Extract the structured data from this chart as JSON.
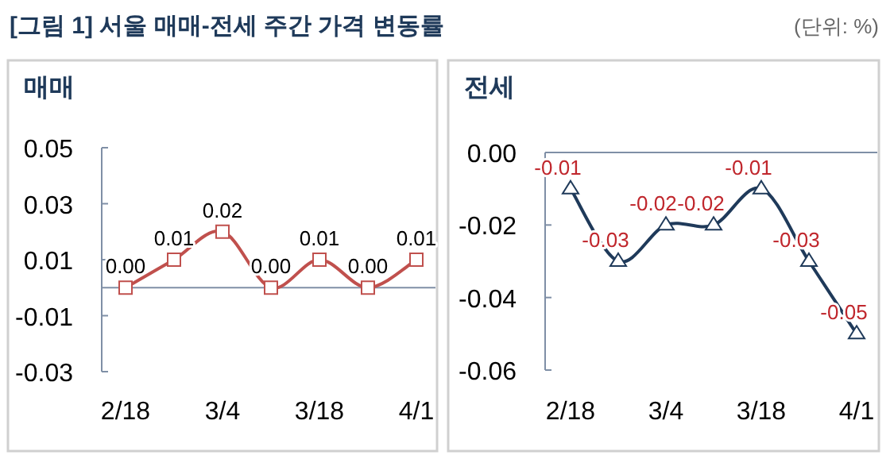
{
  "chart_data": [
    {
      "type": "line",
      "title": "매매",
      "annotations": [
        "[그림 1] 서울 매매-전세 주간 가격 변동률",
        "(단위: %)"
      ],
      "categories": [
        "2/18",
        null,
        "3/4",
        null,
        "3/18",
        null,
        "4/1"
      ],
      "series": [
        {
          "color": "#c0504d",
          "values": [
            0.0,
            0.01,
            0.02,
            0.0,
            0.01,
            0.0,
            0.01
          ],
          "value_labels": [
            "0.00",
            "0.01",
            "0.02",
            "0.00",
            "0.01",
            "0.00",
            "0.01"
          ]
        }
      ],
      "marker": "square",
      "ylim": [
        -0.03,
        0.05
      ],
      "yticks": [
        {
          "value": -0.03,
          "label": "-0.03"
        },
        {
          "value": -0.01,
          "label": "-0.01"
        },
        {
          "value": 0.01,
          "label": "0.01"
        },
        {
          "value": 0.03,
          "label": "0.03"
        },
        {
          "value": 0.05,
          "label": "0.05"
        }
      ],
      "grid": false
    },
    {
      "type": "line",
      "title": "전세",
      "categories": [
        "2/18",
        null,
        "3/4",
        null,
        "3/18",
        null,
        "4/1"
      ],
      "series": [
        {
          "color": "#1f3a5a",
          "values": [
            -0.01,
            -0.03,
            -0.02,
            -0.02,
            -0.01,
            -0.03,
            -0.05
          ]
        }
      ],
      "marker": "triangle",
      "ylim": [
        -0.06,
        0
      ],
      "yticks": [
        {
          "value": -0.06,
          "label": "-0.06"
        },
        {
          "value": -0.04,
          "label": "-0.04"
        },
        {
          "value": -0.02,
          "label": "-0.02"
        },
        {
          "value": 0,
          "label": "0.00"
        }
      ],
      "data_labels": true,
      "grid": false
    }
  ]
}
